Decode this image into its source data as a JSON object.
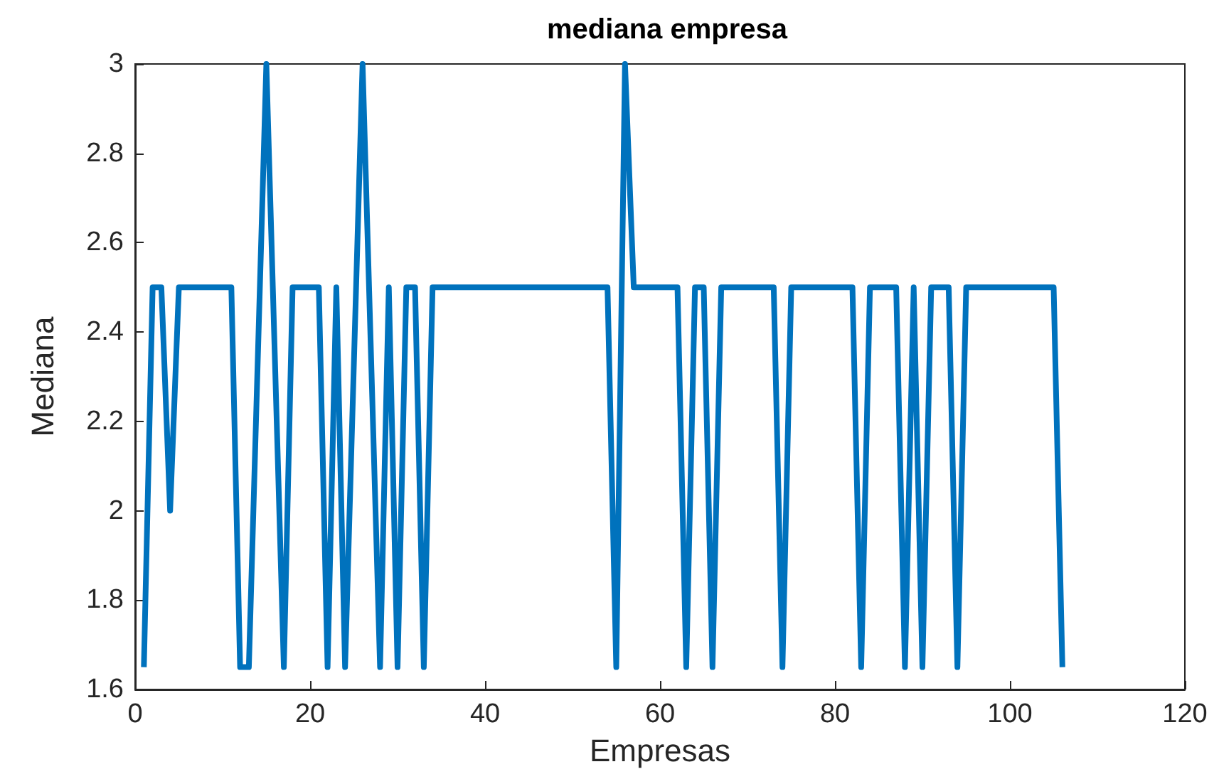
{
  "chart_data": {
    "type": "line",
    "title": "mediana empresa",
    "xlabel": "Empresas",
    "ylabel": "Mediana",
    "x": [
      1,
      2,
      3,
      4,
      5,
      6,
      7,
      8,
      9,
      10,
      11,
      12,
      13,
      15,
      17,
      18,
      19,
      20,
      21,
      22,
      23,
      24,
      26,
      28,
      29,
      30,
      31,
      32,
      33,
      34,
      35,
      36,
      37,
      38,
      39,
      40,
      41,
      42,
      43,
      44,
      45,
      46,
      47,
      48,
      49,
      50,
      51,
      52,
      53,
      54,
      55,
      56,
      57,
      58,
      59,
      60,
      61,
      62,
      63,
      64,
      65,
      66,
      67,
      68,
      69,
      70,
      71,
      72,
      73,
      74,
      75,
      76,
      77,
      78,
      79,
      80,
      81,
      82,
      83,
      84,
      85,
      86,
      87,
      88,
      89,
      90,
      91,
      92,
      93,
      94,
      95,
      96,
      97,
      98,
      99,
      100,
      101,
      102,
      103,
      104,
      105,
      106
    ],
    "series": [
      {
        "color": "#0072bd",
        "values": [
          1.65,
          2.5,
          2.5,
          2,
          2.5,
          2.5,
          2.5,
          2.5,
          2.5,
          2.5,
          2.5,
          1.65,
          1.65,
          3,
          1.65,
          2.5,
          2.5,
          2.5,
          2.5,
          1.65,
          2.5,
          1.65,
          3,
          1.65,
          2.5,
          1.65,
          2.5,
          2.5,
          1.65,
          2.5,
          2.5,
          2.5,
          2.5,
          2.5,
          2.5,
          2.5,
          2.5,
          2.5,
          2.5,
          2.5,
          2.5,
          2.5,
          2.5,
          2.5,
          2.5,
          2.5,
          2.5,
          2.5,
          2.5,
          2.5,
          1.65,
          3,
          2.5,
          2.5,
          2.5,
          2.5,
          2.5,
          2.5,
          1.65,
          2.5,
          2.5,
          1.65,
          2.5,
          2.5,
          2.5,
          2.5,
          2.5,
          2.5,
          2.5,
          1.65,
          2.5,
          2.5,
          2.5,
          2.5,
          2.5,
          2.5,
          2.5,
          2.5,
          1.65,
          2.5,
          2.5,
          2.5,
          2.5,
          1.65,
          2.5,
          1.65,
          2.5,
          2.5,
          2.5,
          1.65,
          2.5,
          2.5,
          2.5,
          2.5,
          2.5,
          2.5,
          2.5,
          2.5,
          2.5,
          2.5,
          2.5,
          1.65
        ]
      }
    ],
    "xlim": [
      0,
      120
    ],
    "xticks": [
      0,
      20,
      40,
      60,
      80,
      100,
      120
    ],
    "ylim": [
      1.6,
      3
    ],
    "yticks": [
      1.6,
      1.8,
      2,
      2.2,
      2.4,
      2.6,
      2.8,
      3
    ],
    "grid": false,
    "marker": "none",
    "line_style": "solid"
  }
}
